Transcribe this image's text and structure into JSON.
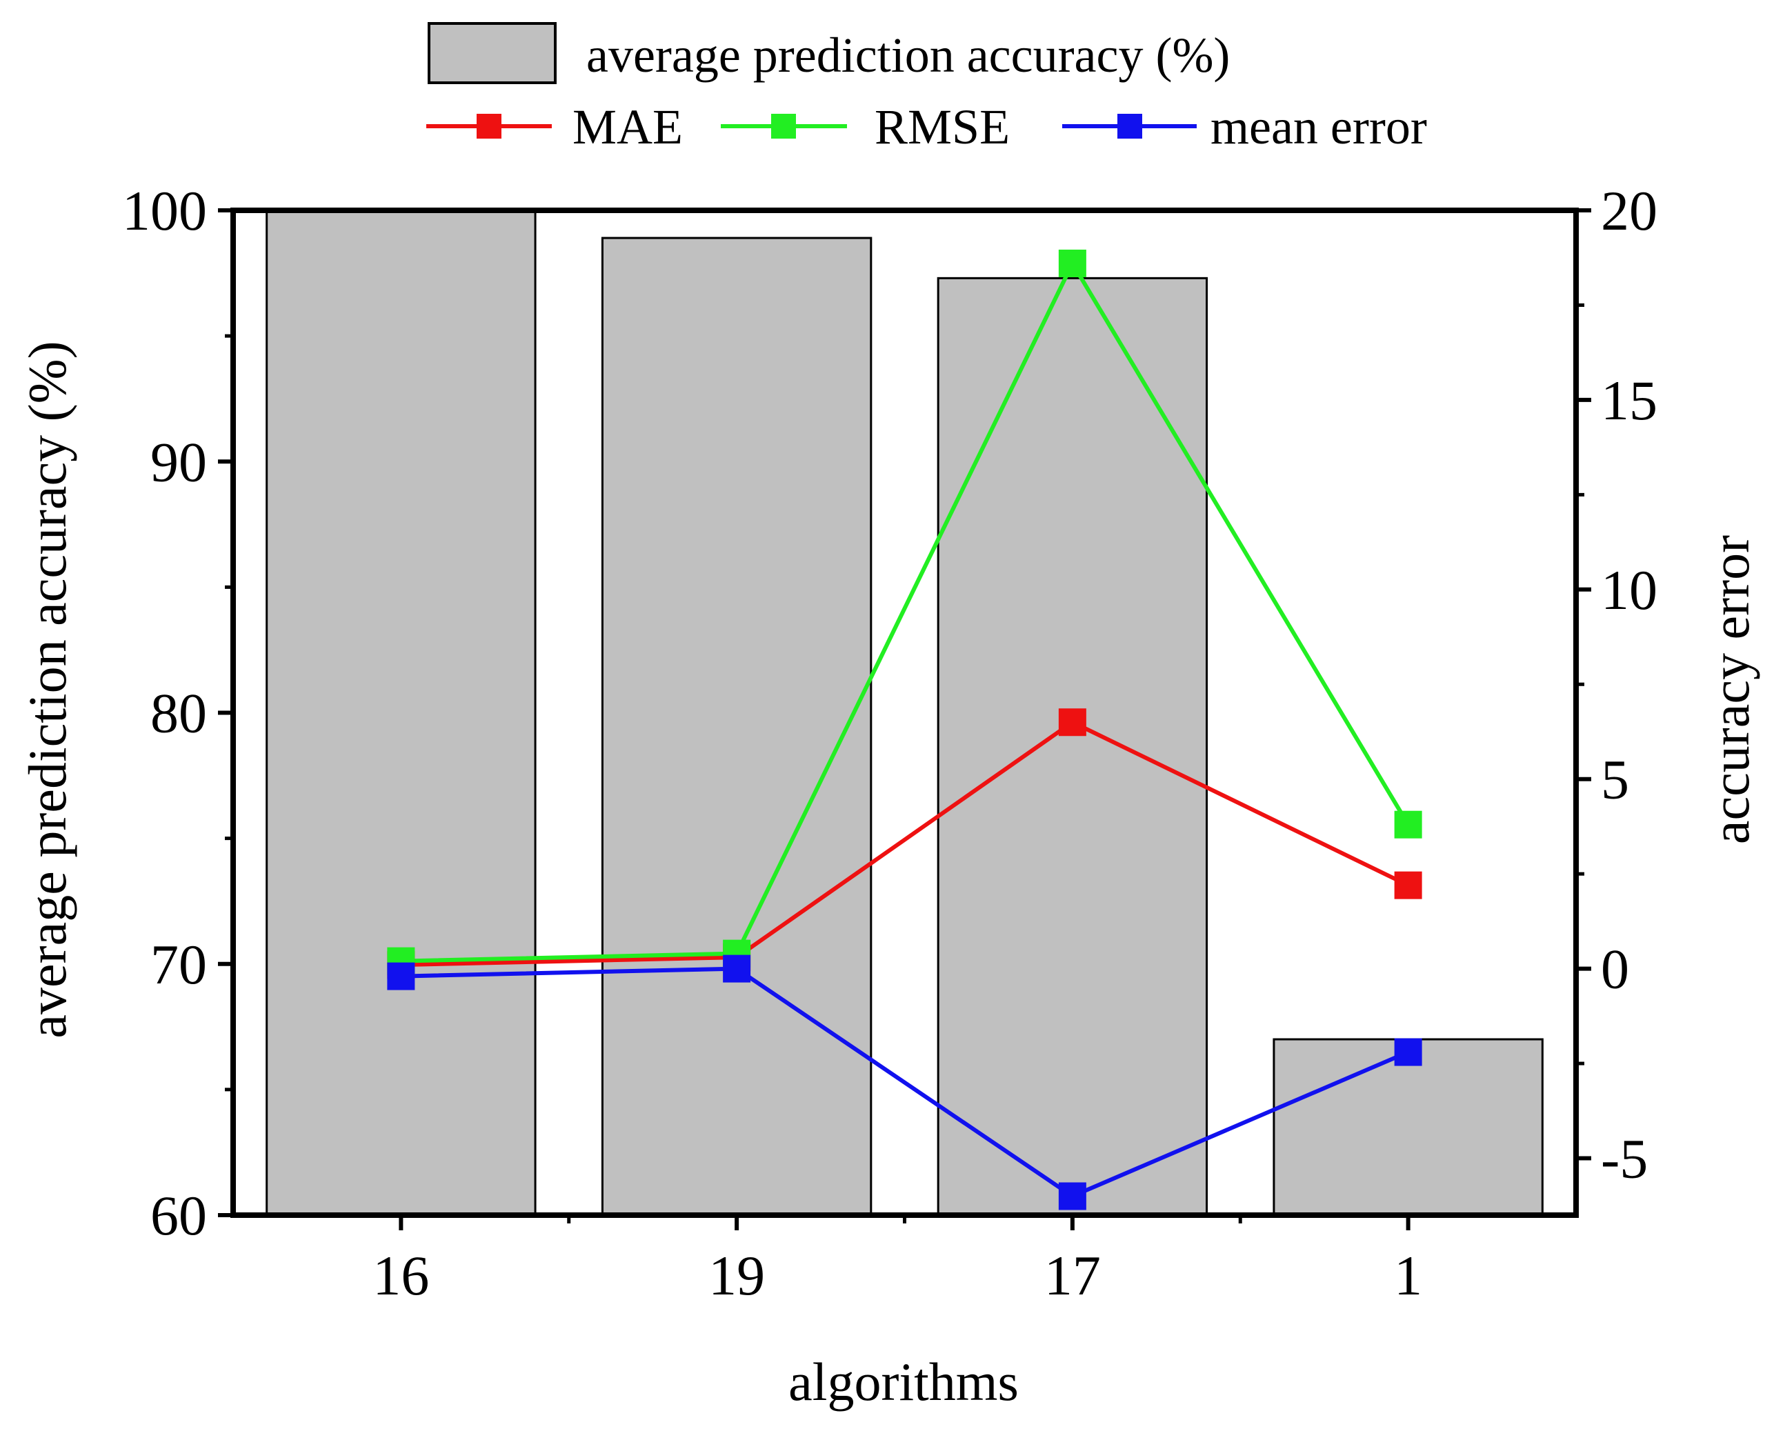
{
  "chart_data": {
    "type": "bar",
    "categories": [
      "16",
      "19",
      "17",
      "1"
    ],
    "xlabel": "algorithms",
    "ylabel_left": "average prediction accuracy (%)",
    "ylabel_right": "accuracy error",
    "ylim_left": [
      60,
      100
    ],
    "ylim_right": [
      -6.5,
      20
    ],
    "yticks_left": [
      60,
      70,
      80,
      90,
      100
    ],
    "yticks_right": [
      -5,
      0,
      5,
      10,
      15,
      20
    ],
    "bar_series": {
      "name": "average prediction accuracy (%)",
      "axis": "left",
      "values": [
        100.0,
        98.9,
        97.3,
        67.0
      ],
      "color": "#c0c0c0"
    },
    "line_series": [
      {
        "name": "MAE",
        "axis": "right",
        "values": [
          0.1,
          0.3,
          6.5,
          2.2
        ],
        "color": "#ee1111"
      },
      {
        "name": "RMSE",
        "axis": "right",
        "values": [
          0.2,
          0.4,
          18.6,
          3.8
        ],
        "color": "#22ee22"
      },
      {
        "name": "mean error",
        "axis": "right",
        "values": [
          -0.2,
          0.0,
          -6.0,
          -2.2
        ],
        "color": "#1111ee"
      }
    ],
    "grid": false
  }
}
